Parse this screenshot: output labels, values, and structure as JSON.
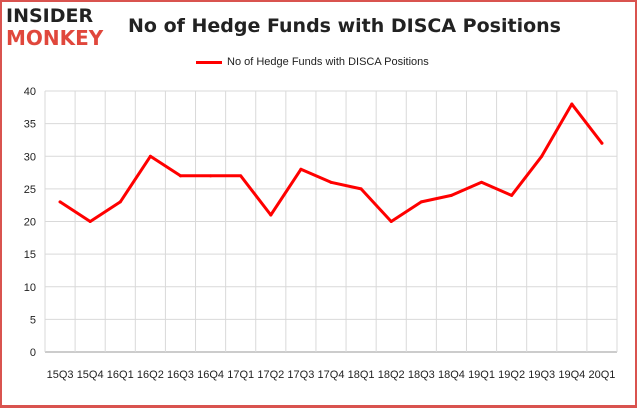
{
  "logo": {
    "line1": "INSIDER",
    "line2": "MONKEY"
  },
  "chart_data": {
    "type": "line",
    "title": "No of Hedge Funds with DISCA Positions",
    "xlabel": "",
    "ylabel": "",
    "ylim": [
      0,
      40
    ],
    "yticks": [
      0,
      5,
      10,
      15,
      20,
      25,
      30,
      35,
      40
    ],
    "grid": true,
    "legend_position": "top-center",
    "categories": [
      "15Q3",
      "15Q4",
      "16Q1",
      "16Q2",
      "16Q3",
      "16Q4",
      "17Q1",
      "17Q2",
      "17Q3",
      "17Q4",
      "18Q1",
      "18Q2",
      "18Q3",
      "18Q4",
      "19Q1",
      "19Q2",
      "19Q3",
      "19Q4",
      "20Q1"
    ],
    "series": [
      {
        "name": "No of Hedge Funds with DISCA Positions",
        "color": "#ff0000",
        "values": [
          23,
          20,
          23,
          30,
          27,
          27,
          27,
          21,
          28,
          26,
          25,
          20,
          23,
          24,
          26,
          24,
          30,
          38,
          32
        ]
      }
    ]
  }
}
